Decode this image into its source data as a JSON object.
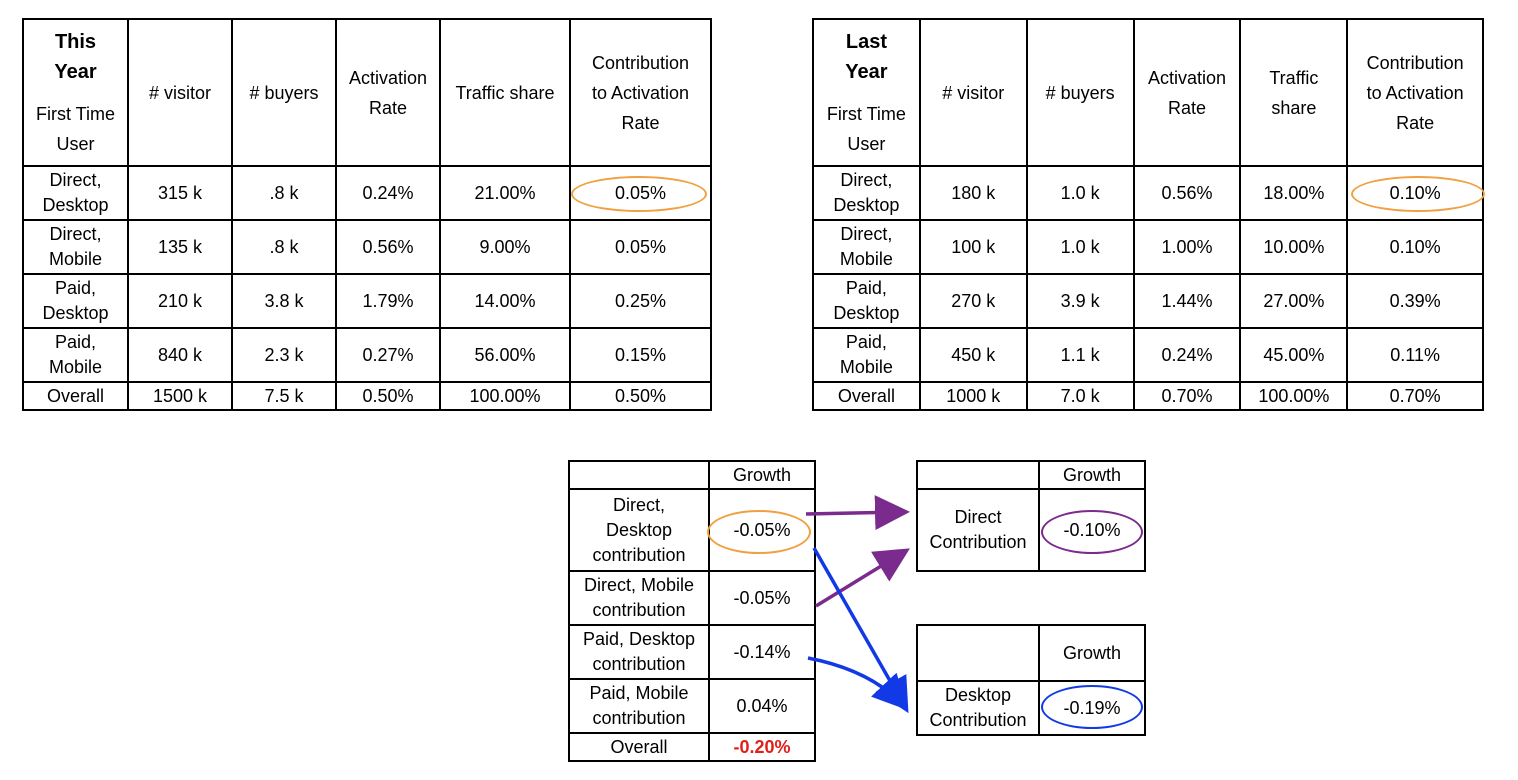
{
  "this_year": {
    "corner": {
      "title": "This\nYear",
      "sub": "First Time\nUser"
    },
    "headers": [
      "# visitor",
      "# buyers",
      "Activation\nRate",
      "Traffic share",
      "Contribution\nto Activation\nRate"
    ],
    "rows": [
      {
        "label": "Direct,\nDesktop",
        "cells": [
          "315 k",
          ".8 k",
          "0.24%",
          "21.00%",
          "0.05%"
        ]
      },
      {
        "label": "Direct,\nMobile",
        "cells": [
          "135 k",
          ".8 k",
          "0.56%",
          "9.00%",
          "0.05%"
        ]
      },
      {
        "label": "Paid,\nDesktop",
        "cells": [
          "210 k",
          "3.8 k",
          "1.79%",
          "14.00%",
          "0.25%"
        ]
      },
      {
        "label": "Paid,\nMobile",
        "cells": [
          "840 k",
          "2.3 k",
          "0.27%",
          "56.00%",
          "0.15%"
        ]
      },
      {
        "label": "Overall",
        "cells": [
          "1500 k",
          "7.5 k",
          "0.50%",
          "100.00%",
          "0.50%"
        ]
      }
    ]
  },
  "last_year": {
    "corner": {
      "title": "Last\nYear",
      "sub": "First Time\nUser"
    },
    "headers": [
      "# visitor",
      "# buyers",
      "Activation\nRate",
      "Traffic\nshare",
      "Contribution\nto Activation\nRate"
    ],
    "rows": [
      {
        "label": "Direct,\nDesktop",
        "cells": [
          "180 k",
          "1.0 k",
          "0.56%",
          "18.00%",
          "0.10%"
        ]
      },
      {
        "label": "Direct,\nMobile",
        "cells": [
          "100 k",
          "1.0 k",
          "1.00%",
          "10.00%",
          "0.10%"
        ]
      },
      {
        "label": "Paid,\nDesktop",
        "cells": [
          "270 k",
          "3.9 k",
          "1.44%",
          "27.00%",
          "0.39%"
        ]
      },
      {
        "label": "Paid,\nMobile",
        "cells": [
          "450 k",
          "1.1 k",
          "0.24%",
          "45.00%",
          "0.11%"
        ]
      },
      {
        "label": "Overall",
        "cells": [
          "1000 k",
          "7.0 k",
          "0.70%",
          "100.00%",
          "0.70%"
        ]
      }
    ]
  },
  "growth": {
    "header": "Growth",
    "rows": [
      {
        "label": "Direct,\nDesktop\ncontribution",
        "value": "-0.05%"
      },
      {
        "label": "Direct, Mobile\ncontribution",
        "value": "-0.05%"
      },
      {
        "label": "Paid, Desktop\ncontribution",
        "value": "-0.14%"
      },
      {
        "label": "Paid, Mobile\ncontribution",
        "value": "0.04%"
      },
      {
        "label": "Overall",
        "value": "-0.20%"
      }
    ]
  },
  "direct_box": {
    "header": "Growth",
    "label": "Direct\nContribution",
    "value": "-0.10%"
  },
  "desktop_box": {
    "header": "Growth",
    "label": "Desktop\nContribution",
    "value": "-0.19%"
  },
  "colors": {
    "orange": "#f0a040",
    "purple": "#7b2a8e",
    "blue": "#1239e6",
    "red": "#e0201a"
  }
}
